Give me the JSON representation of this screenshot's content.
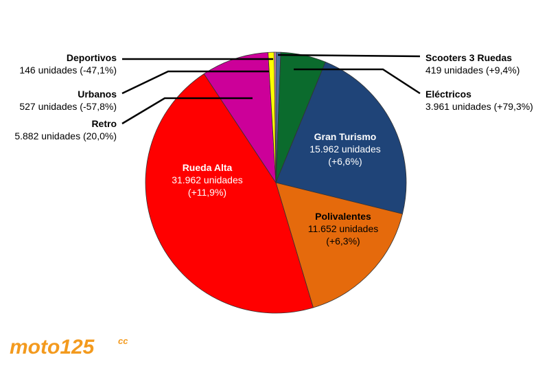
{
  "chart_data": {
    "type": "pie",
    "title": "",
    "unit": "unidades",
    "slices": [
      {
        "name": "Scooters 3 Ruedas",
        "value": 419,
        "value_label": "419 unidades",
        "change": "(+9,4%)",
        "color": "#4a6f9e"
      },
      {
        "name": "Eléctricos",
        "value": 3961,
        "value_label": "3.961 unidades",
        "change": "(+79,3%)",
        "color": "#0b6b2d"
      },
      {
        "name": "Gran Turismo",
        "value": 15962,
        "value_label": "15.962 unidades",
        "change": "(+6,6%)",
        "color": "#1f4478"
      },
      {
        "name": "Polivalentes",
        "value": 11652,
        "value_label": "11.652 unidades",
        "change": "(+6,3%)",
        "color": "#e56a0c"
      },
      {
        "name": "Rueda Alta",
        "value": 31962,
        "value_label": "31.962 unidades",
        "change": "(+11,9%)",
        "color": "#ff0000"
      },
      {
        "name": "Retro",
        "value": 5882,
        "value_label": "5.882 unidades",
        "change": "(20,0%)",
        "color": "#cc0099"
      },
      {
        "name": "Urbanos",
        "value": 527,
        "value_label": "527 unidades",
        "change": "(-57,8%)",
        "color": "#ffff00"
      },
      {
        "name": "Deportivos",
        "value": 146,
        "value_label": "146 unidades",
        "change": "(-47,1%)",
        "color": "#ff99cc"
      }
    ]
  },
  "logo": {
    "text": "moto125",
    "suffix": "cc",
    "color": "#f39a1e"
  }
}
